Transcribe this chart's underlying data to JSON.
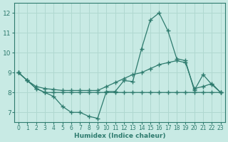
{
  "xlabel": "Humidex (Indice chaleur)",
  "xlim": [
    -0.5,
    23.5
  ],
  "ylim": [
    6.5,
    12.5
  ],
  "yticks": [
    7,
    8,
    9,
    10,
    11,
    12
  ],
  "xticks": [
    0,
    1,
    2,
    3,
    4,
    5,
    6,
    7,
    8,
    9,
    10,
    11,
    12,
    13,
    14,
    15,
    16,
    17,
    18,
    19,
    20,
    21,
    22,
    23
  ],
  "bg_color": "#c8eae4",
  "grid_color": "#b0d8d0",
  "line_color": "#2e7b6e",
  "line1_y": [
    9.0,
    8.6,
    8.2,
    8.0,
    7.8,
    7.3,
    7.0,
    7.0,
    6.8,
    6.7,
    8.05,
    8.05,
    8.6,
    8.55,
    10.2,
    11.65,
    12.0,
    11.1,
    9.7,
    9.6,
    8.1,
    8.9,
    8.4,
    8.0
  ],
  "line2_y": [
    9.0,
    8.6,
    8.2,
    8.0,
    8.0,
    8.0,
    8.0,
    8.0,
    8.0,
    8.0,
    8.0,
    8.0,
    8.0,
    8.0,
    8.0,
    8.0,
    8.0,
    8.0,
    8.0,
    8.0,
    8.0,
    8.0,
    8.0,
    8.0
  ],
  "line3_y": [
    9.0,
    8.6,
    8.3,
    8.2,
    8.15,
    8.1,
    8.1,
    8.1,
    8.1,
    8.1,
    8.3,
    8.5,
    8.7,
    8.9,
    9.0,
    9.2,
    9.4,
    9.5,
    9.6,
    9.5,
    8.2,
    8.3,
    8.45,
    8.0
  ]
}
